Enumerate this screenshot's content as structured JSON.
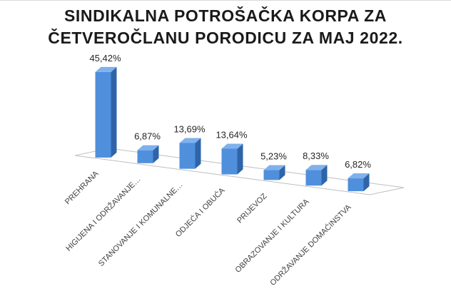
{
  "chart_data": {
    "type": "bar",
    "title_lines": [
      "SINDIKALNA POTROŠAČKA KORPA ZA",
      "ČETVEROČLANU PORODICU ZA MAJ 2022."
    ],
    "categories": [
      "PREHRANA",
      "HIGIJENA I ODRŽAVANJE…",
      "STANOVANJE I KOMUNALNE…",
      "ODJEĆA I OBUĆA",
      "PRIJEVOZ",
      "OBRAZOVANJE I KULTURA",
      "ODRŽAVANJE DOMAĆINSTVA"
    ],
    "values": [
      45.42,
      6.87,
      13.69,
      13.64,
      5.23,
      8.33,
      6.82
    ],
    "data_labels": [
      "45,42%",
      "6,87%",
      "13,69%",
      "13,64%",
      "5,23%",
      "8,33%",
      "6,82%"
    ],
    "ylim": [
      0,
      50
    ],
    "grid": false,
    "legend": "none",
    "bar_color": "#4f8fdc",
    "bar_side_color": "#2f65a8",
    "bar_top_color": "#7fb1ec"
  }
}
